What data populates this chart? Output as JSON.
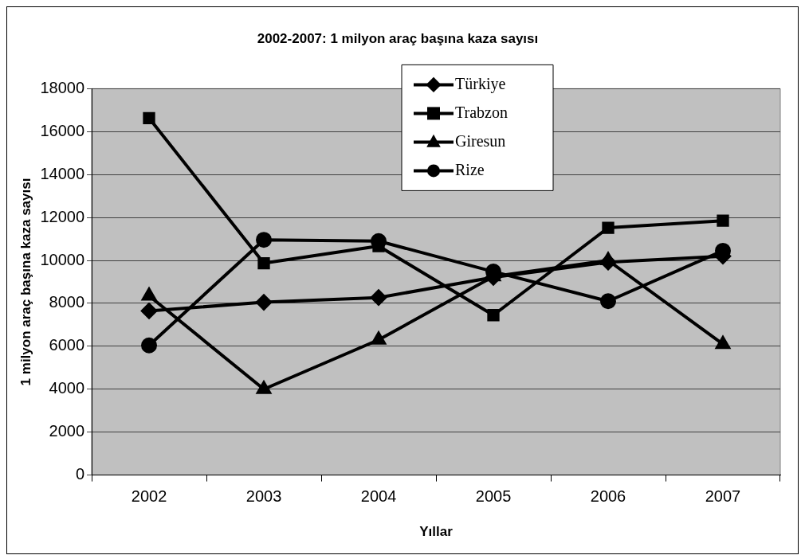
{
  "chart_data": {
    "type": "line",
    "title": "2002-2007: 1 milyon araç başına kaza sayısı",
    "xlabel": "Yıllar",
    "ylabel": "1 milyon araç başına kaza sayısı",
    "categories": [
      "2002",
      "2003",
      "2004",
      "2005",
      "2006",
      "2007"
    ],
    "ylim": [
      0,
      18000
    ],
    "yticks": [
      0,
      2000,
      4000,
      6000,
      8000,
      10000,
      12000,
      14000,
      16000,
      18000
    ],
    "grid": "y",
    "legend": "top right",
    "series": [
      {
        "name": "Türkiye",
        "color": "#000000",
        "marker": "diamond",
        "values": [
          7650,
          8050,
          8270,
          9210,
          9920,
          10200
        ]
      },
      {
        "name": "Trabzon",
        "color": "#000000",
        "marker": "square",
        "values": [
          16630,
          9870,
          10670,
          7450,
          11520,
          11850
        ]
      },
      {
        "name": "Giresun",
        "color": "#000000",
        "marker": "triangle",
        "values": [
          8350,
          4000,
          6300,
          9250,
          10000,
          6100
        ]
      },
      {
        "name": "Rize",
        "color": "#000000",
        "marker": "circle",
        "values": [
          6040,
          10960,
          10900,
          9480,
          8100,
          10450
        ]
      }
    ]
  }
}
